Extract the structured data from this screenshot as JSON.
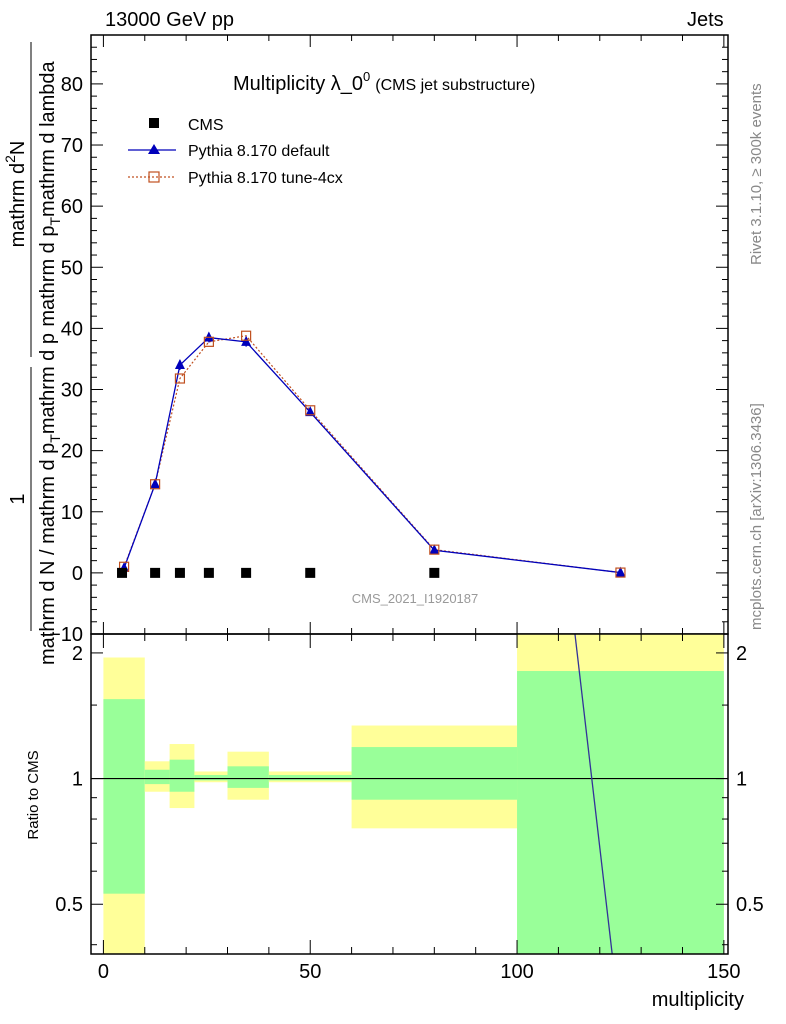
{
  "header": {
    "left": "13000 GeV pp",
    "right": "Jets"
  },
  "side_text": {
    "rivet": "Rivet 3.1.10, ≥ 300k events",
    "mcplots": "mcplots.cern.ch [arXiv:1306.3436]"
  },
  "chart_data": [
    {
      "type": "line",
      "title_main": "Multiplicity λ_0",
      "title_sup": "0",
      "title_sub": "(CMS jet substructure)",
      "analysis": "CMS_2021_I1920187",
      "ylabel_frac_num": "1",
      "ylabel_frac_den": "mathrm d N / mathrm d p",
      "ylabel_frac_den_sub": "T",
      "ylabel_frac_den_tail": "mathrm d p",
      "ylabel_line1": "mathrm d",
      "ylabel_line1_sup": "2",
      "ylabel_line1_tail": "N",
      "ylabel_line2": "mathrm d p",
      "ylabel_line2_sub": "T",
      "ylabel_line2_tail": "mathrm d lambda",
      "xlim": [
        -3,
        151
      ],
      "ylim": [
        -10,
        88
      ],
      "yticks": [
        -10,
        0,
        10,
        20,
        30,
        40,
        50,
        60,
        70,
        80
      ],
      "legend_position": "top-left",
      "series": [
        {
          "name": "CMS",
          "marker": "square",
          "color": "#000000",
          "x": [
            4.5,
            12.5,
            18.5,
            25.5,
            34.5,
            50,
            80
          ],
          "y": [
            0,
            0,
            0,
            0,
            0,
            0,
            0
          ]
        },
        {
          "name": "Pythia 8.170 default",
          "marker": "triangle",
          "color": "#0000bb",
          "x": [
            5,
            12.5,
            18.5,
            25.5,
            34.5,
            50,
            80,
            125
          ],
          "y": [
            0.8,
            14.5,
            34,
            38.5,
            37.8,
            26.3,
            3.7,
            0.05
          ],
          "yerr": [
            0.3,
            0.5,
            0.8,
            0.8,
            0.8,
            0.5,
            0.3,
            0.05
          ]
        },
        {
          "name": "Pythia 8.170 tune-4cx",
          "marker": "open-square",
          "color": "#c05020",
          "x": [
            5,
            12.5,
            18.5,
            25.5,
            34.5,
            50,
            80,
            125
          ],
          "y": [
            1.0,
            14.5,
            31.8,
            37.8,
            38.8,
            26.6,
            3.8,
            0.05
          ]
        }
      ]
    },
    {
      "type": "area",
      "ylabel": "Ratio to CMS",
      "xlabel": "multiplicity",
      "xlim": [
        -3,
        151
      ],
      "ylim": [
        0.38,
        2.22
      ],
      "xticks": [
        0,
        50,
        100,
        150
      ],
      "yticks": [
        0.5,
        1,
        2
      ],
      "ytick_labels": [
        "0.5",
        "1",
        "2"
      ],
      "bands": [
        {
          "x0": 0,
          "x1": 10,
          "inner": [
            0.53,
            1.55
          ],
          "outer": [
            0.38,
            1.95
          ]
        },
        {
          "x0": 10,
          "x1": 16,
          "inner": [
            0.97,
            1.05
          ],
          "outer": [
            0.93,
            1.1
          ]
        },
        {
          "x0": 16,
          "x1": 22,
          "inner": [
            0.93,
            1.11
          ],
          "outer": [
            0.85,
            1.21
          ]
        },
        {
          "x0": 22,
          "x1": 30,
          "inner": [
            0.99,
            1.02
          ],
          "outer": [
            0.98,
            1.04
          ]
        },
        {
          "x0": 30,
          "x1": 40,
          "inner": [
            0.95,
            1.07
          ],
          "outer": [
            0.89,
            1.16
          ]
        },
        {
          "x0": 40,
          "x1": 60,
          "inner": [
            0.99,
            1.02
          ],
          "outer": [
            0.98,
            1.04
          ]
        },
        {
          "x0": 60,
          "x1": 100,
          "inner": [
            0.89,
            1.19
          ],
          "outer": [
            0.76,
            1.34
          ]
        },
        {
          "x0": 100,
          "x1": 150,
          "inner": [
            0.38,
            1.81
          ],
          "outer": [
            0.38,
            2.22
          ]
        }
      ],
      "ratio_line": {
        "name": "Pythia 8.170 default",
        "color": "#333399",
        "x": [
          114,
          123
        ],
        "y": [
          2.22,
          0.38
        ]
      },
      "colors": {
        "inner": "#99ff99",
        "outer": "#ffff99"
      }
    }
  ]
}
